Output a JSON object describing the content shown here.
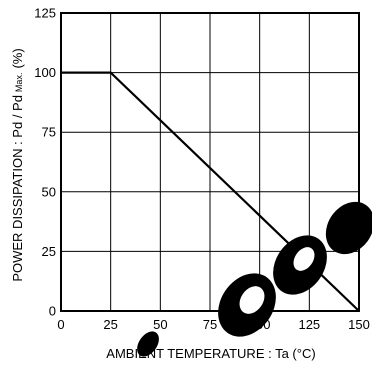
{
  "chart_data": {
    "type": "line",
    "title": "",
    "xlabel": "AMBIENT  TEMPERATURE : Ta (°C)",
    "ylabel": "POWER  DISSIPATION : Pd / Pd",
    "ylabel_sub": "Max.",
    "ylabel_unit": "(%)",
    "xlim": [
      0,
      150
    ],
    "ylim": [
      0,
      125
    ],
    "xticks": [
      "0",
      "25",
      "50",
      "75",
      "100",
      "125",
      "150"
    ],
    "yticks": [
      "0",
      "25",
      "50",
      "75",
      "100",
      "125"
    ],
    "grid": true,
    "series": [
      {
        "x": [
          0,
          25,
          150
        ],
        "y": [
          100,
          100,
          0
        ]
      }
    ]
  },
  "colors": {
    "line": "#000000",
    "grid": "#000000",
    "background": "#ffffff"
  }
}
